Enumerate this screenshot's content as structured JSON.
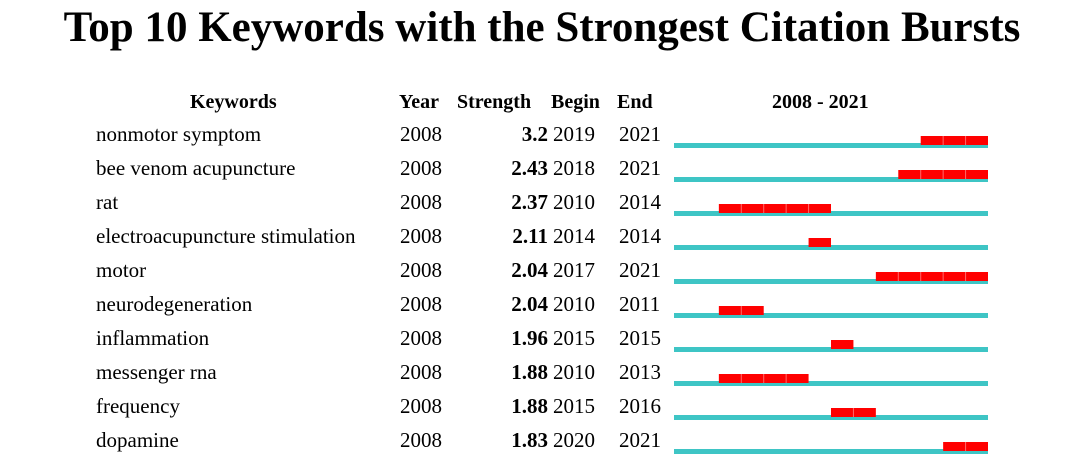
{
  "title": "Top 10 Keywords with the Strongest Citation Bursts",
  "headers": {
    "keywords": "Keywords",
    "year": "Year",
    "strength": "Strength",
    "begin": "Begin",
    "end": "End",
    "range": "2008 - 2021"
  },
  "chart_data": {
    "type": "table",
    "title": "Top 10 Keywords with the Strongest Citation Bursts",
    "timeline": {
      "start": 2008,
      "end": 2021
    },
    "colors": {
      "base": "#3ec5c5",
      "burst": "#ff0000"
    },
    "rows": [
      {
        "keyword": "nonmotor symptom",
        "year": "2008",
        "strength": "3.2",
        "begin": "2019",
        "end": "2021"
      },
      {
        "keyword": "bee venom acupuncture",
        "year": "2008",
        "strength": "2.43",
        "begin": "2018",
        "end": "2021"
      },
      {
        "keyword": "rat",
        "year": "2008",
        "strength": "2.37",
        "begin": "2010",
        "end": "2014"
      },
      {
        "keyword": "electroacupuncture stimulation",
        "year": "2008",
        "strength": "2.11",
        "begin": "2014",
        "end": "2014"
      },
      {
        "keyword": "motor",
        "year": "2008",
        "strength": "2.04",
        "begin": "2017",
        "end": "2021"
      },
      {
        "keyword": "neurodegeneration",
        "year": "2008",
        "strength": "2.04",
        "begin": "2010",
        "end": "2011"
      },
      {
        "keyword": "inflammation",
        "year": "2008",
        "strength": "1.96",
        "begin": "2015",
        "end": "2015"
      },
      {
        "keyword": "messenger rna",
        "year": "2008",
        "strength": "1.88",
        "begin": "2010",
        "end": "2013"
      },
      {
        "keyword": "frequency",
        "year": "2008",
        "strength": "1.88",
        "begin": "2015",
        "end": "2016"
      },
      {
        "keyword": "dopamine",
        "year": "2008",
        "strength": "1.83",
        "begin": "2020",
        "end": "2021"
      }
    ]
  }
}
